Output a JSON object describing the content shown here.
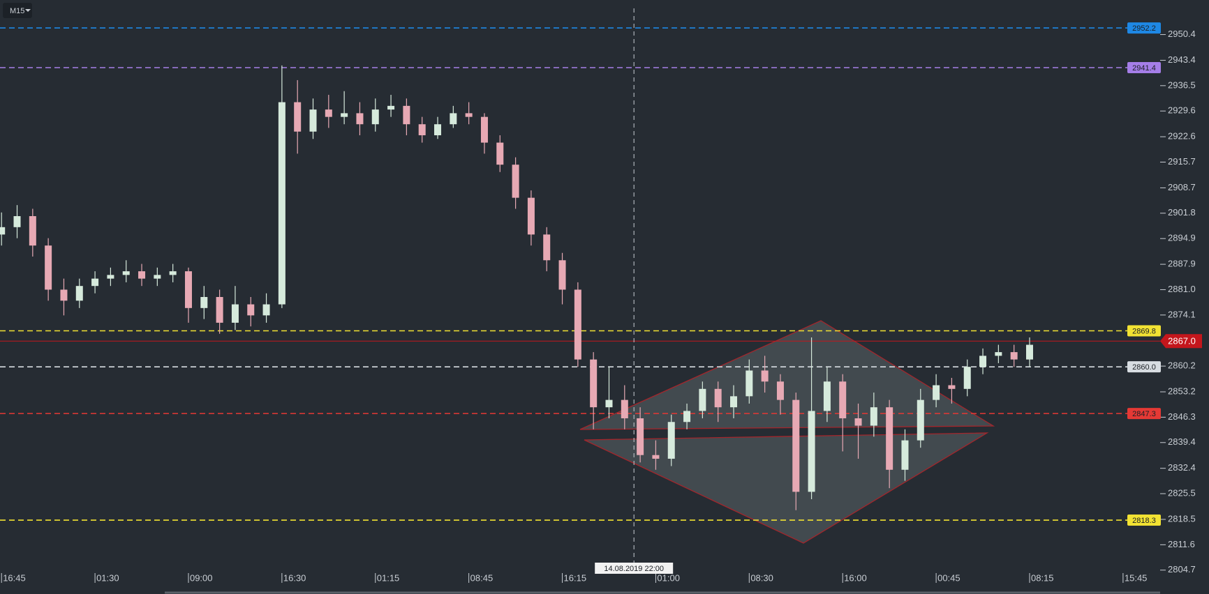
{
  "chart_data": {
    "type": "candlestick",
    "timeframe": "M15",
    "x": [
      0,
      5,
      10,
      15,
      20,
      25,
      30,
      35,
      40,
      45,
      50,
      55,
      60,
      65,
      70,
      75,
      80,
      85,
      90,
      95,
      100,
      105,
      110,
      115,
      120,
      125,
      130,
      135,
      140,
      145,
      150,
      155,
      160,
      165,
      170,
      175,
      180,
      185,
      190,
      195,
      200,
      205,
      210,
      215,
      220,
      225,
      230,
      235,
      240,
      245,
      250,
      255,
      260,
      265,
      270,
      275,
      280,
      285,
      290,
      295,
      300,
      305,
      310,
      315,
      320,
      325,
      330
    ],
    "open": [
      2896,
      2898,
      2901,
      2893,
      2881,
      2878,
      2882,
      2884,
      2885,
      2886,
      2884,
      2885,
      2886,
      2876,
      2879,
      2872,
      2877,
      2874,
      2877,
      2932,
      2924,
      2930,
      2928,
      2929,
      2926,
      2930,
      2931,
      2926,
      2923,
      2926,
      2929,
      2928,
      2921,
      2915,
      2906,
      2896,
      2889,
      2881,
      2862,
      2849,
      2851,
      2846,
      2836,
      2835,
      2845,
      2848,
      2854,
      2849,
      2852,
      2859,
      2856,
      2851,
      2826,
      2848,
      2856,
      2846,
      2844,
      2849,
      2832,
      2840,
      2851,
      2855,
      2854,
      2860,
      2863,
      2864,
      2862
    ],
    "high": [
      2902,
      2904,
      2903,
      2895,
      2884,
      2884,
      2886,
      2887,
      2889,
      2888,
      2887,
      2888,
      2887,
      2882,
      2881,
      2882,
      2879,
      2880,
      2942,
      2938,
      2933,
      2934,
      2935,
      2932,
      2933,
      2934,
      2933,
      2928,
      2928,
      2931,
      2932,
      2929,
      2923,
      2917,
      2908,
      2898,
      2891,
      2883,
      2864,
      2860,
      2855,
      2849,
      2840,
      2847,
      2850,
      2856,
      2856,
      2855,
      2862,
      2863,
      2858,
      2853,
      2868,
      2860,
      2858,
      2850,
      2853,
      2851,
      2843,
      2854,
      2858,
      2857,
      2862,
      2865,
      2866,
      2866,
      2868
    ],
    "low": [
      2893,
      2895,
      2890,
      2878,
      2874,
      2876,
      2880,
      2882,
      2883,
      2882,
      2882,
      2883,
      2872,
      2873,
      2869,
      2870,
      2871,
      2872,
      2876,
      2918,
      2922,
      2925,
      2926,
      2923,
      2924,
      2928,
      2923,
      2921,
      2922,
      2925,
      2926,
      2918,
      2913,
      2903,
      2893,
      2886,
      2877,
      2860,
      2843,
      2846,
      2843,
      2834,
      2832,
      2833,
      2843,
      2846,
      2845,
      2846,
      2850,
      2853,
      2847,
      2821,
      2824,
      2845,
      2837,
      2835,
      2841,
      2827,
      2829,
      2838,
      2849,
      2850,
      2852,
      2858,
      2861,
      2860,
      2860
    ],
    "close": [
      2898,
      2901,
      2893,
      2881,
      2878,
      2882,
      2884,
      2885,
      2886,
      2884,
      2885,
      2886,
      2876,
      2879,
      2872,
      2877,
      2874,
      2877,
      2932,
      2924,
      2930,
      2928,
      2929,
      2926,
      2930,
      2931,
      2926,
      2923,
      2926,
      2929,
      2928,
      2921,
      2915,
      2906,
      2896,
      2889,
      2881,
      2862,
      2849,
      2851,
      2846,
      2836,
      2835,
      2845,
      2848,
      2854,
      2849,
      2852,
      2859,
      2856,
      2851,
      2826,
      2848,
      2856,
      2846,
      2844,
      2849,
      2832,
      2840,
      2851,
      2855,
      2854,
      2860,
      2863,
      2864,
      2862,
      2866
    ],
    "up_color": "#d6eadc",
    "down_color": "#e7a9b4",
    "xlim": [
      -0.5,
      372
    ],
    "xticks": [
      {
        "value": 0,
        "label": "16:45"
      },
      {
        "value": 30,
        "label": "01:30"
      },
      {
        "value": 60,
        "label": "09:00"
      },
      {
        "value": 90,
        "label": "16:30"
      },
      {
        "value": 120,
        "label": "01:15"
      },
      {
        "value": 150,
        "label": "08:45"
      },
      {
        "value": 180,
        "label": "16:15"
      },
      {
        "value": 210,
        "label": "01:00"
      },
      {
        "value": 240,
        "label": "08:30"
      },
      {
        "value": 270,
        "label": "16:00"
      },
      {
        "value": 300,
        "label": "00:45"
      },
      {
        "value": 330,
        "label": "08:15"
      },
      {
        "value": 360,
        "label": "15:45"
      }
    ],
    "ylim": [
      2798.2,
      2959.8
    ],
    "yticks": [
      2950.4,
      2943.4,
      2936.5,
      2929.6,
      2922.6,
      2915.7,
      2908.7,
      2901.8,
      2894.9,
      2887.9,
      {
        "value": 2881.0,
        "label": "2881.0"
      },
      2874.1,
      2860.2,
      2853.2,
      2846.3,
      2839.4,
      2832.4,
      2825.5,
      2818.5,
      2811.6,
      2804.7
    ],
    "levels": [
      {
        "value": 2952.2,
        "color": "#1e88e5"
      },
      {
        "value": 2941.4,
        "color": "#a57ee8"
      },
      {
        "value": 2869.8,
        "color": "#f2e233"
      },
      {
        "value": 2860.0,
        "label": "2860.0",
        "color": "#d8dde2"
      },
      {
        "value": 2847.3,
        "color": "#e53935"
      },
      {
        "value": 2818.3,
        "color": "#f2e233"
      }
    ],
    "current_price": {
      "value": 2867.0,
      "label": "2867.0",
      "color": "#c4161c"
    },
    "crosshair": {
      "x": 203,
      "label": "14.08.2019 22:00"
    }
  }
}
